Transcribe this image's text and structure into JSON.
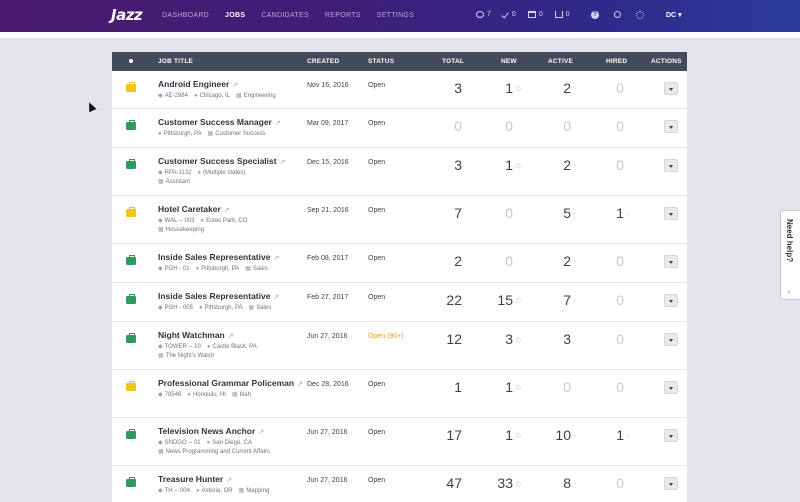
{
  "app": {
    "logo": "Jazz"
  },
  "nav": {
    "items": [
      "Dashboard",
      "Jobs",
      "Candidates",
      "Reports",
      "Settings"
    ],
    "active": "Jobs"
  },
  "header_counts": [
    {
      "icon": "eye-icon",
      "value": "7"
    },
    {
      "icon": "check-icon",
      "value": "0"
    },
    {
      "icon": "calendar-icon",
      "value": "0"
    },
    {
      "icon": "inbox-icon",
      "value": "0"
    }
  ],
  "user": {
    "initials": "DC"
  },
  "table": {
    "columns": {
      "title": "Job Title",
      "created": "Created",
      "status": "Status",
      "total": "Total",
      "new": "New",
      "active": "Active",
      "hired": "Hired",
      "actions": "Actions"
    },
    "rows": [
      {
        "title": "Android Engineer",
        "color": "#f0c419",
        "meta1": [
          [
            "tag",
            "AE-2984"
          ],
          [
            "pin",
            "Chicago, IL"
          ],
          [
            "org",
            "Engineering"
          ]
        ],
        "meta2": [],
        "created": "Nov 16, 2016",
        "status": "Open",
        "total": "3",
        "new": "1",
        "active": "2",
        "hired": "0"
      },
      {
        "title": "Customer Success Manager",
        "color": "#2e9b5d",
        "meta1": [
          [
            "pin",
            "Pittsburgh, PA"
          ],
          [
            "org",
            "Customer Success"
          ]
        ],
        "meta2": [],
        "created": "Mar 09, 2017",
        "status": "Open",
        "total": "0",
        "new": "0",
        "active": "0",
        "hired": "0"
      },
      {
        "title": "Customer Success Specialist",
        "color": "#2e9b5d",
        "meta1": [
          [
            "tag",
            "RPA-1132"
          ],
          [
            "pin",
            "(Multiple states)"
          ]
        ],
        "meta2": [
          [
            "org",
            "Assistant"
          ]
        ],
        "created": "Dec 15, 2016",
        "status": "Open",
        "total": "3",
        "new": "1",
        "active": "2",
        "hired": "0"
      },
      {
        "title": "Hotel Caretaker",
        "color": "#f0c419",
        "meta1": [
          [
            "tag",
            "WAL -- 003"
          ],
          [
            "pin",
            "Estes Park, CO"
          ]
        ],
        "meta2": [
          [
            "org",
            "Housekeeping"
          ]
        ],
        "created": "Sep 21, 2016",
        "status": "Open",
        "total": "7",
        "new": "0",
        "active": "5",
        "hired": "1"
      },
      {
        "title": "Inside Sales Representative",
        "color": "#2e9b5d",
        "meta1": [
          [
            "tag",
            "PGH - 01"
          ],
          [
            "pin",
            "Pittsburgh, PA"
          ],
          [
            "org",
            "Sales"
          ]
        ],
        "meta2": [],
        "created": "Feb 08, 2017",
        "status": "Open",
        "total": "2",
        "new": "0",
        "active": "2",
        "hired": "0"
      },
      {
        "title": "Inside Sales Representative",
        "color": "#2e9b5d",
        "meta1": [
          [
            "tag",
            "PGH - 005"
          ],
          [
            "pin",
            "Pittsburgh, PA"
          ],
          [
            "org",
            "Sales"
          ]
        ],
        "meta2": [],
        "created": "Feb 27, 2017",
        "status": "Open",
        "total": "22",
        "new": "15",
        "active": "7",
        "hired": "0"
      },
      {
        "title": "Night Watchman",
        "color": "#2e9b5d",
        "meta1": [
          [
            "tag",
            "TOWER -- 10"
          ],
          [
            "pin",
            "Castle Black, PA"
          ]
        ],
        "meta2": [
          [
            "org",
            "The Night's Watch"
          ]
        ],
        "created": "Jun 27, 2016",
        "status": "Open (90+)",
        "total": "12",
        "new": "3",
        "active": "3",
        "hired": "0"
      },
      {
        "title": "Professional Grammar Policeman",
        "color": "#f0c419",
        "meta1": [],
        "meta2": [
          [
            "tag",
            "78546"
          ],
          [
            "pin",
            "Honolulu, HI"
          ],
          [
            "org",
            "blah"
          ]
        ],
        "created": "Dec 28, 2016",
        "status": "Open",
        "total": "1",
        "new": "1",
        "active": "0",
        "hired": "0"
      },
      {
        "title": "Television News Anchor",
        "color": "#2e9b5d",
        "meta1": [
          [
            "tag",
            "SNDGO -- 01"
          ],
          [
            "pin",
            "San Diego, CA"
          ]
        ],
        "meta2": [
          [
            "org",
            "News Programming and Current Affairs"
          ]
        ],
        "created": "Jun 27, 2016",
        "status": "Open",
        "total": "17",
        "new": "1",
        "active": "10",
        "hired": "1"
      },
      {
        "title": "Treasure Hunter",
        "color": "#2e9b5d",
        "meta1": [
          [
            "tag",
            "TH -- 004"
          ],
          [
            "pin",
            "Astoria, OR"
          ],
          [
            "org",
            "Mapping"
          ]
        ],
        "meta2": [],
        "created": "Jun 27, 2016",
        "status": "Open",
        "total": "47",
        "new": "33",
        "active": "8",
        "hired": "0"
      }
    ]
  },
  "help_tab": {
    "label": "Need help?"
  }
}
